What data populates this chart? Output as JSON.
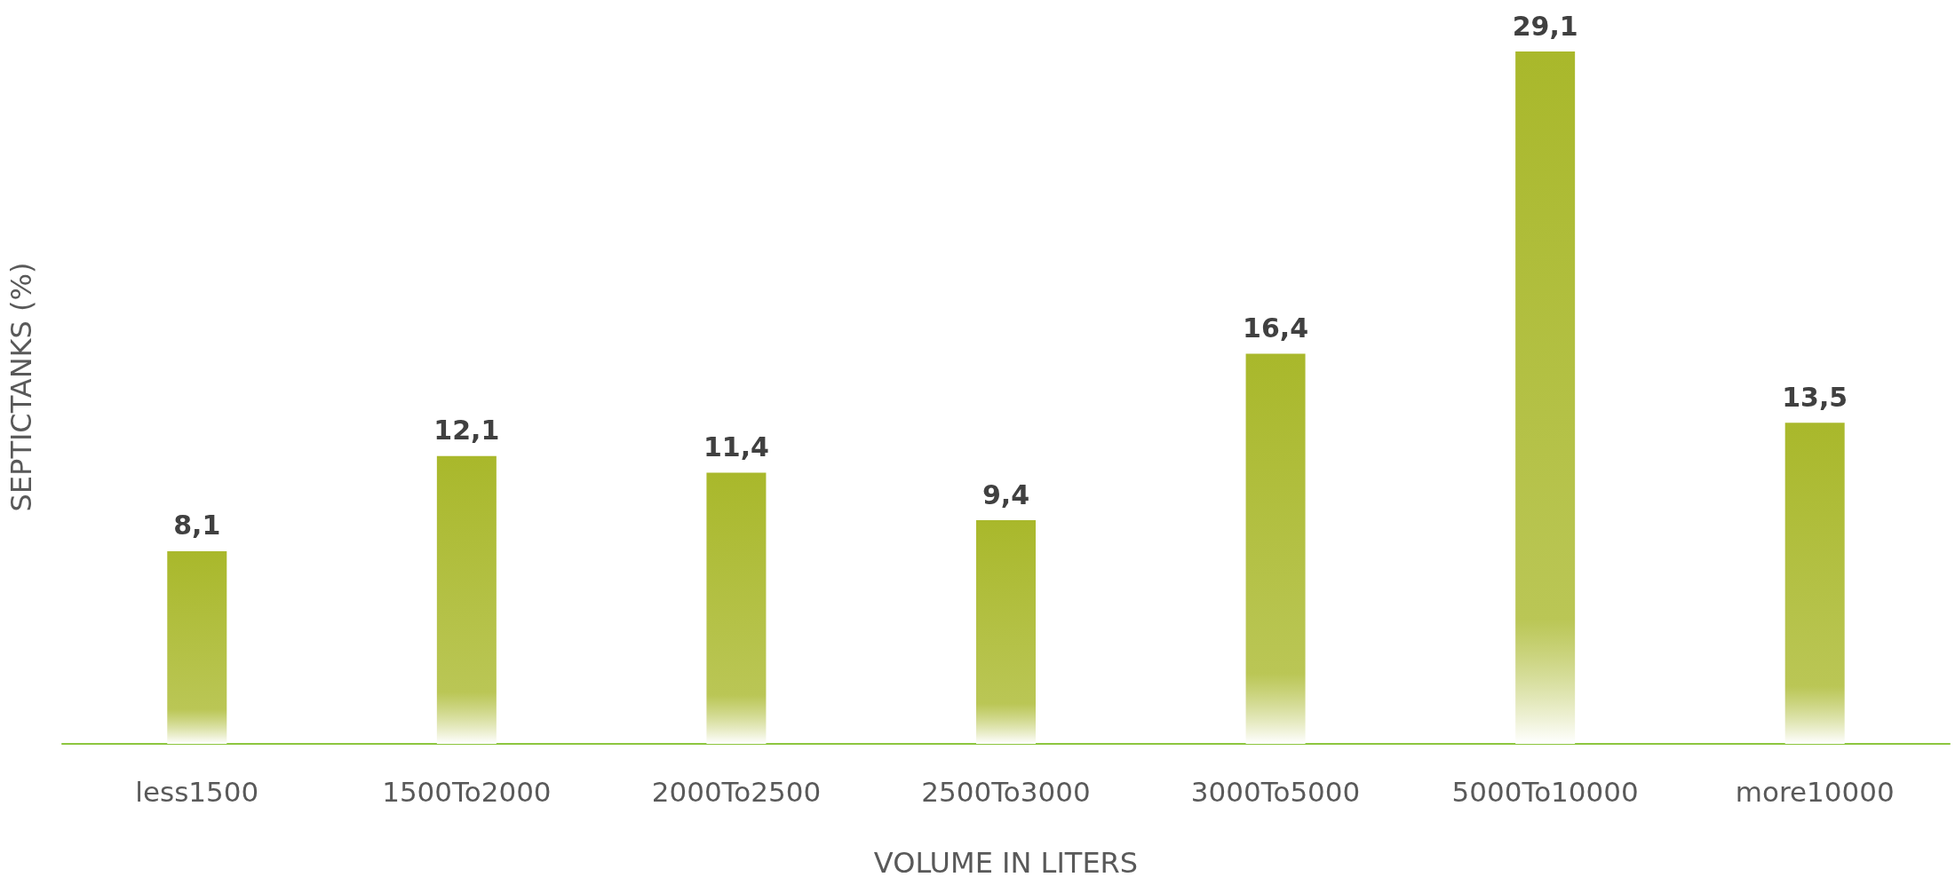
{
  "chart_data": {
    "type": "bar",
    "xlabel": "VOLUME IN LITERS",
    "ylabel": "SEPTICTANKS (%)",
    "categories": [
      "less1500",
      "1500To2000",
      "2000To2500",
      "2500To3000",
      "3000To5000",
      "5000To10000",
      "more10000"
    ],
    "values": [
      8.1,
      12.1,
      11.4,
      9.4,
      16.4,
      29.1,
      13.5
    ],
    "value_labels": [
      "8,1",
      "12,1",
      "11,4",
      "9,4",
      "16,4",
      "29,1",
      "13,5"
    ],
    "color": "#a9b82b"
  }
}
